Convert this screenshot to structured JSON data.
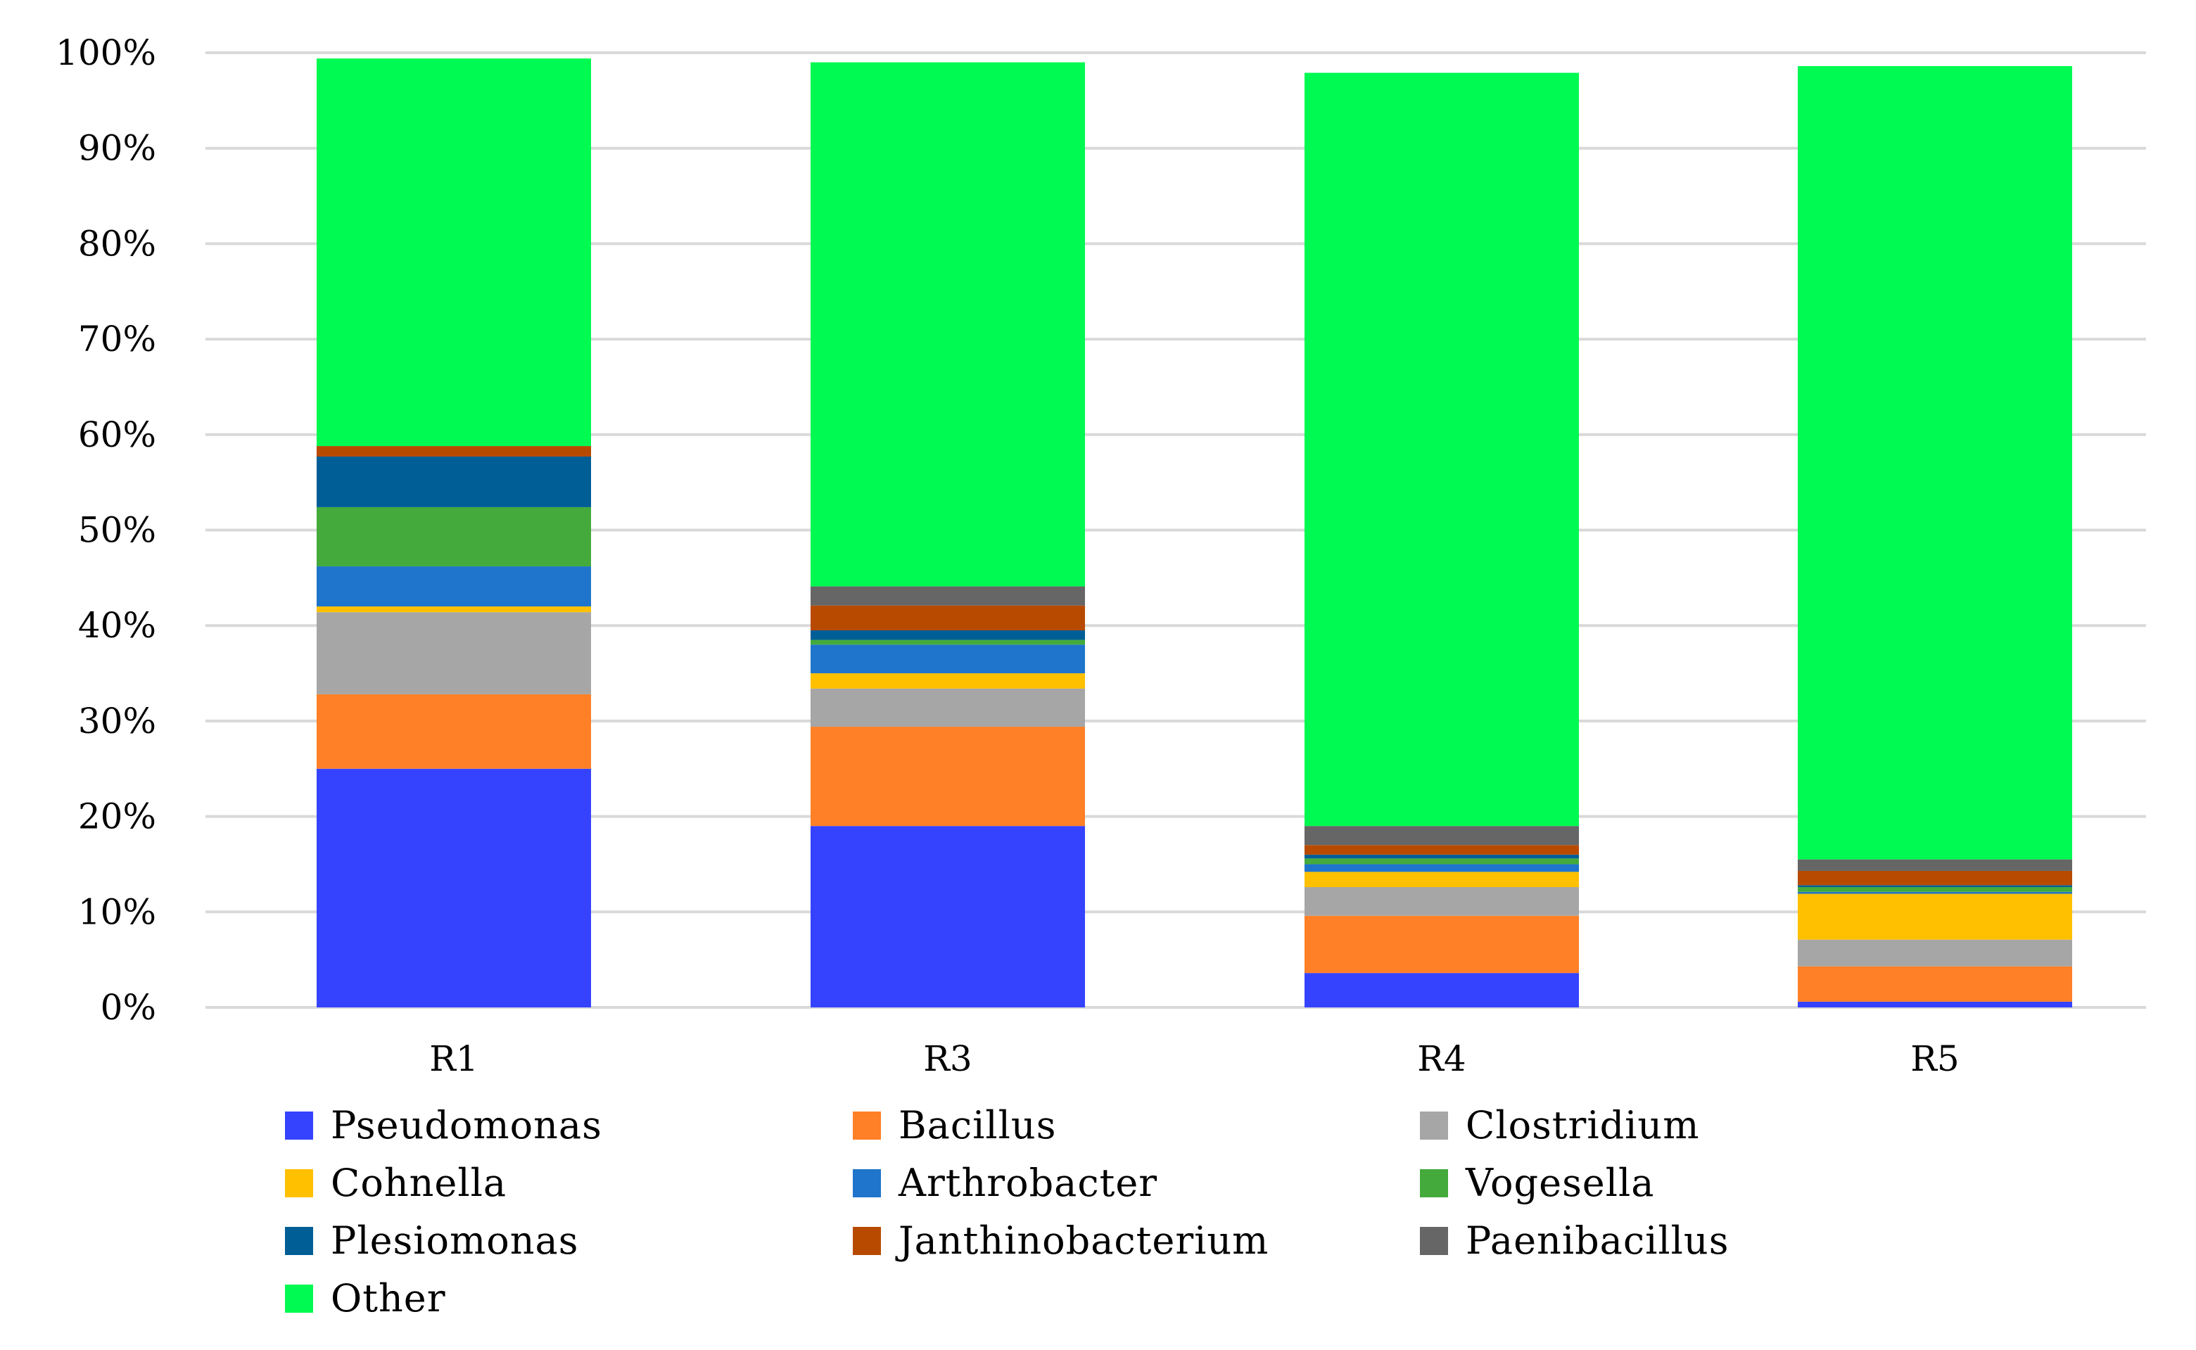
{
  "chart_data": {
    "type": "bar",
    "stacked": true,
    "percent": true,
    "title": "",
    "xlabel": "",
    "ylabel": "",
    "ylim": [
      0,
      100
    ],
    "yticks": [
      "0%",
      "10%",
      "20%",
      "30%",
      "40%",
      "50%",
      "60%",
      "70%",
      "80%",
      "90%",
      "100%"
    ],
    "grid": true,
    "legend_position": "bottom",
    "categories": [
      "R1",
      "R3",
      "R4",
      "R5"
    ],
    "series": [
      {
        "name": "Pseudomonas",
        "color": "#3543FF",
        "values": [
          25.0,
          19.0,
          3.6,
          0.6
        ]
      },
      {
        "name": "Bacillus",
        "color": "#FF8027",
        "values": [
          7.8,
          10.4,
          6.0,
          3.7
        ]
      },
      {
        "name": "Clostridium",
        "color": "#A6A6A6",
        "values": [
          8.6,
          4.0,
          3.0,
          2.8
        ]
      },
      {
        "name": "Cohnella",
        "color": "#FFC000",
        "values": [
          0.6,
          1.6,
          1.6,
          4.8
        ]
      },
      {
        "name": "Arthrobacter",
        "color": "#1F75CB",
        "values": [
          4.2,
          3.0,
          0.8,
          0.2
        ]
      },
      {
        "name": "Vogesella",
        "color": "#44AA3C",
        "values": [
          6.2,
          0.5,
          0.6,
          0.5
        ]
      },
      {
        "name": "Plesiomonas",
        "color": "#005E96",
        "values": [
          5.3,
          1.0,
          0.4,
          0.2
        ]
      },
      {
        "name": "Janthinobacterium",
        "color": "#B84A00",
        "values": [
          1.1,
          2.6,
          1.0,
          1.5
        ]
      },
      {
        "name": "Paenibacillus",
        "color": "#666666",
        "values": [
          0.0,
          2.0,
          2.0,
          1.2
        ]
      },
      {
        "name": "Other",
        "color": "#00FA51",
        "values": [
          40.6,
          54.9,
          78.9,
          83.1
        ]
      }
    ]
  }
}
